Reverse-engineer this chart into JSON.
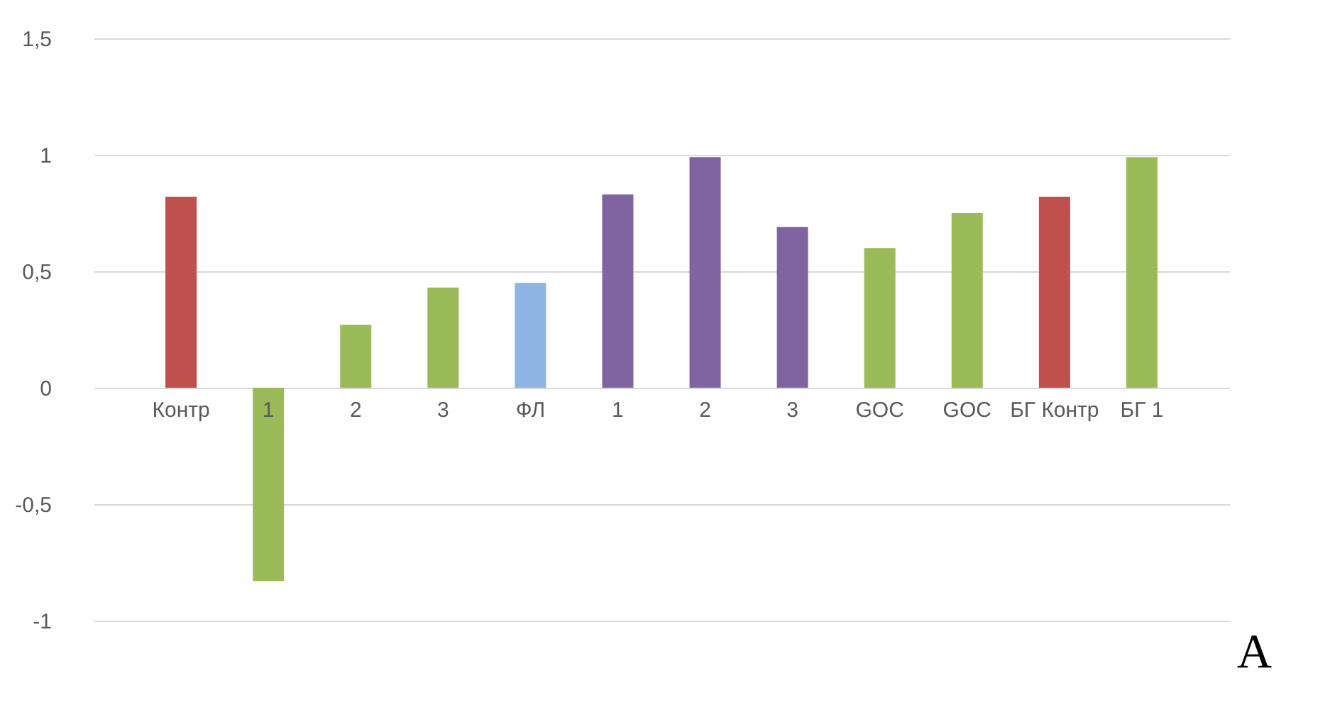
{
  "chart_data": {
    "type": "bar",
    "categories": [
      "Контр",
      "1",
      "2",
      "3",
      "ФЛ",
      "1",
      "2",
      "3",
      "GOC",
      "GOC",
      "БГ Контр",
      "БГ 1"
    ],
    "values": [
      0.82,
      -0.83,
      0.27,
      0.43,
      0.45,
      0.83,
      0.99,
      0.69,
      0.6,
      0.75,
      0.82,
      0.99
    ],
    "colors": [
      "#c0504d",
      "#9bbb59",
      "#9bbb59",
      "#9bbb59",
      "#8db4e2",
      "#8064a2",
      "#8064a2",
      "#8064a2",
      "#9bbb59",
      "#9bbb59",
      "#c0504d",
      "#9bbb59"
    ],
    "ylim": [
      -1,
      1.5
    ],
    "yticks": [
      {
        "value": -1,
        "label": "-1"
      },
      {
        "value": -0.5,
        "label": "-0,5"
      },
      0,
      {
        "value": 0.5,
        "label": "0,5"
      },
      1,
      {
        "value": 1.5,
        "label": "1,5"
      }
    ],
    "grid": "y",
    "legend": false,
    "annotations": [
      "A"
    ]
  }
}
